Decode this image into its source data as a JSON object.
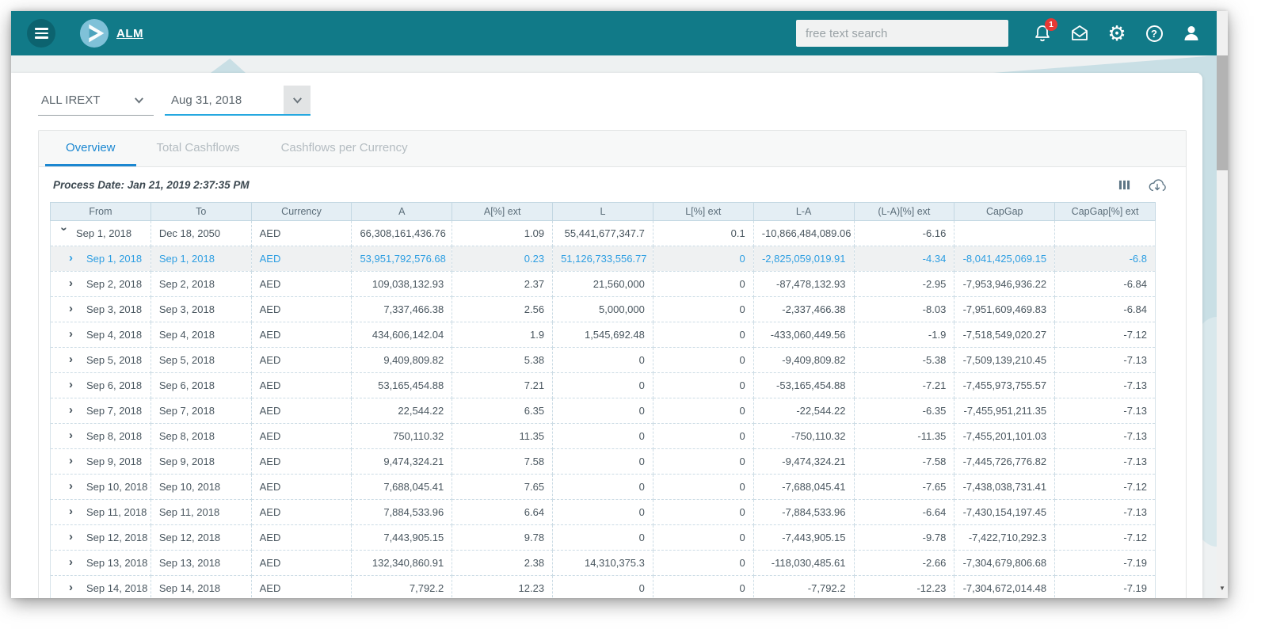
{
  "header": {
    "app_name": "ALM",
    "search_placeholder": "free text search",
    "notification_count": "1"
  },
  "filters": {
    "scenario": "ALL IREXT",
    "date": "Aug 31, 2018"
  },
  "tabs": [
    {
      "label": "Overview",
      "active": true
    },
    {
      "label": "Total Cashflows",
      "active": false
    },
    {
      "label": "Cashflows per Currency",
      "active": false
    }
  ],
  "toolbar": {
    "process_date": "Process Date: Jan 21, 2019 2:37:35 PM"
  },
  "colors": {
    "appbar_teal": "#117a88",
    "accent_blue": "#1b87d1",
    "selected_row_text": "#2d9ee2",
    "badge_red": "#e53935",
    "table_header_bg": "#e4eef4"
  },
  "table": {
    "columns": [
      "From",
      "To",
      "Currency",
      "A",
      "A[%] ext",
      "L",
      "L[%] ext",
      "L-A",
      "(L-A)[%] ext",
      "CapGap",
      "CapGap[%] ext"
    ],
    "rows": [
      {
        "expanded": true,
        "selected": false,
        "cells": [
          "Sep 1, 2018",
          "Dec 18, 2050",
          "AED",
          "66,308,161,436.76",
          "1.09",
          "55,441,677,347.7",
          "0.1",
          "-10,866,484,089.06",
          "-6.16",
          "",
          ""
        ]
      },
      {
        "expanded": false,
        "selected": true,
        "cells": [
          "Sep 1, 2018",
          "Sep 1, 2018",
          "AED",
          "53,951,792,576.68",
          "0.23",
          "51,126,733,556.77",
          "0",
          "-2,825,059,019.91",
          "-4.34",
          "-8,041,425,069.15",
          "-6.8"
        ]
      },
      {
        "expanded": false,
        "selected": false,
        "cells": [
          "Sep 2, 2018",
          "Sep 2, 2018",
          "AED",
          "109,038,132.93",
          "2.37",
          "21,560,000",
          "0",
          "-87,478,132.93",
          "-2.95",
          "-7,953,946,936.22",
          "-6.84"
        ]
      },
      {
        "expanded": false,
        "selected": false,
        "cells": [
          "Sep 3, 2018",
          "Sep 3, 2018",
          "AED",
          "7,337,466.38",
          "2.56",
          "5,000,000",
          "0",
          "-2,337,466.38",
          "-8.03",
          "-7,951,609,469.83",
          "-6.84"
        ]
      },
      {
        "expanded": false,
        "selected": false,
        "cells": [
          "Sep 4, 2018",
          "Sep 4, 2018",
          "AED",
          "434,606,142.04",
          "1.9",
          "1,545,692.48",
          "0",
          "-433,060,449.56",
          "-1.9",
          "-7,518,549,020.27",
          "-7.12"
        ]
      },
      {
        "expanded": false,
        "selected": false,
        "cells": [
          "Sep 5, 2018",
          "Sep 5, 2018",
          "AED",
          "9,409,809.82",
          "5.38",
          "0",
          "0",
          "-9,409,809.82",
          "-5.38",
          "-7,509,139,210.45",
          "-7.13"
        ]
      },
      {
        "expanded": false,
        "selected": false,
        "cells": [
          "Sep 6, 2018",
          "Sep 6, 2018",
          "AED",
          "53,165,454.88",
          "7.21",
          "0",
          "0",
          "-53,165,454.88",
          "-7.21",
          "-7,455,973,755.57",
          "-7.13"
        ]
      },
      {
        "expanded": false,
        "selected": false,
        "cells": [
          "Sep 7, 2018",
          "Sep 7, 2018",
          "AED",
          "22,544.22",
          "6.35",
          "0",
          "0",
          "-22,544.22",
          "-6.35",
          "-7,455,951,211.35",
          "-7.13"
        ]
      },
      {
        "expanded": false,
        "selected": false,
        "cells": [
          "Sep 8, 2018",
          "Sep 8, 2018",
          "AED",
          "750,110.32",
          "11.35",
          "0",
          "0",
          "-750,110.32",
          "-11.35",
          "-7,455,201,101.03",
          "-7.13"
        ]
      },
      {
        "expanded": false,
        "selected": false,
        "cells": [
          "Sep 9, 2018",
          "Sep 9, 2018",
          "AED",
          "9,474,324.21",
          "7.58",
          "0",
          "0",
          "-9,474,324.21",
          "-7.58",
          "-7,445,726,776.82",
          "-7.13"
        ]
      },
      {
        "expanded": false,
        "selected": false,
        "cells": [
          "Sep 10, 2018",
          "Sep 10, 2018",
          "AED",
          "7,688,045.41",
          "7.65",
          "0",
          "0",
          "-7,688,045.41",
          "-7.65",
          "-7,438,038,731.41",
          "-7.12"
        ]
      },
      {
        "expanded": false,
        "selected": false,
        "cells": [
          "Sep 11, 2018",
          "Sep 11, 2018",
          "AED",
          "7,884,533.96",
          "6.64",
          "0",
          "0",
          "-7,884,533.96",
          "-6.64",
          "-7,430,154,197.45",
          "-7.13"
        ]
      },
      {
        "expanded": false,
        "selected": false,
        "cells": [
          "Sep 12, 2018",
          "Sep 12, 2018",
          "AED",
          "7,443,905.15",
          "9.78",
          "0",
          "0",
          "-7,443,905.15",
          "-9.78",
          "-7,422,710,292.3",
          "-7.12"
        ]
      },
      {
        "expanded": false,
        "selected": false,
        "cells": [
          "Sep 13, 2018",
          "Sep 13, 2018",
          "AED",
          "132,340,860.91",
          "2.38",
          "14,310,375.3",
          "0",
          "-118,030,485.61",
          "-2.66",
          "-7,304,679,806.68",
          "-7.19"
        ]
      },
      {
        "expanded": false,
        "selected": false,
        "cells": [
          "Sep 14, 2018",
          "Sep 14, 2018",
          "AED",
          "7,792.2",
          "12.23",
          "0",
          "0",
          "-7,792.2",
          "-12.23",
          "-7,304,672,014.48",
          "-7.19"
        ]
      }
    ]
  }
}
